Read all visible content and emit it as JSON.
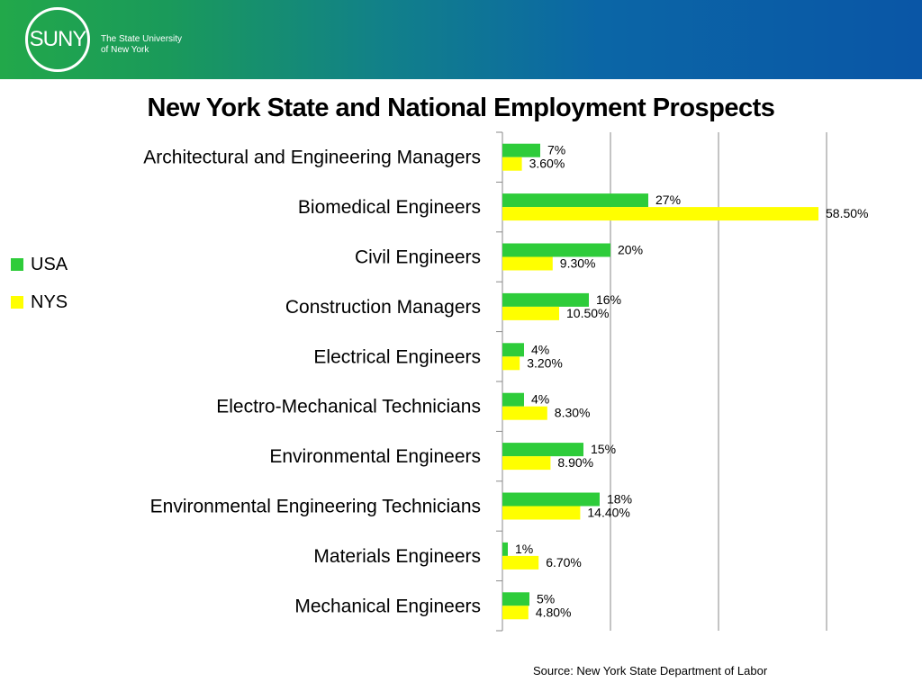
{
  "header": {
    "logo_text": "SUNY",
    "logo_caption_line1": "The State University",
    "logo_caption_line2": "of New York"
  },
  "colors": {
    "usa": "#2ecc3a",
    "nys": "#ffff00",
    "grid": "#8a8a8a"
  },
  "chart_data": {
    "type": "bar",
    "orientation": "horizontal",
    "title": "New York State and National Employment Prospects",
    "categories": [
      "Architectural and Engineering Managers",
      "Biomedical Engineers",
      "Civil Engineers",
      "Construction Managers",
      "Electrical Engineers",
      "Electro-Mechanical Technicians",
      "Environmental Engineers",
      "Environmental Engineering Technicians",
      "Materials Engineers",
      "Mechanical Engineers"
    ],
    "series": [
      {
        "name": "USA",
        "values": [
          7,
          27,
          20,
          16,
          4,
          4,
          15,
          18,
          1,
          5
        ],
        "labels": [
          "7%",
          "27%",
          "20%",
          "16%",
          "4%",
          "4%",
          "15%",
          "18%",
          "1%",
          "5%"
        ]
      },
      {
        "name": "NYS",
        "values": [
          3.6,
          58.5,
          9.3,
          10.5,
          3.2,
          8.3,
          8.9,
          14.4,
          6.7,
          4.8
        ],
        "labels": [
          "3.60%",
          "58.50%",
          "9.30%",
          "10.50%",
          "3.20%",
          "8.30%",
          "8.90%",
          "14.40%",
          "6.70%",
          "4.80%"
        ]
      }
    ],
    "xlim": [
      0,
      60
    ],
    "grid": true,
    "legend_position": "left",
    "source": "Source:  New York State Department of Labor"
  }
}
